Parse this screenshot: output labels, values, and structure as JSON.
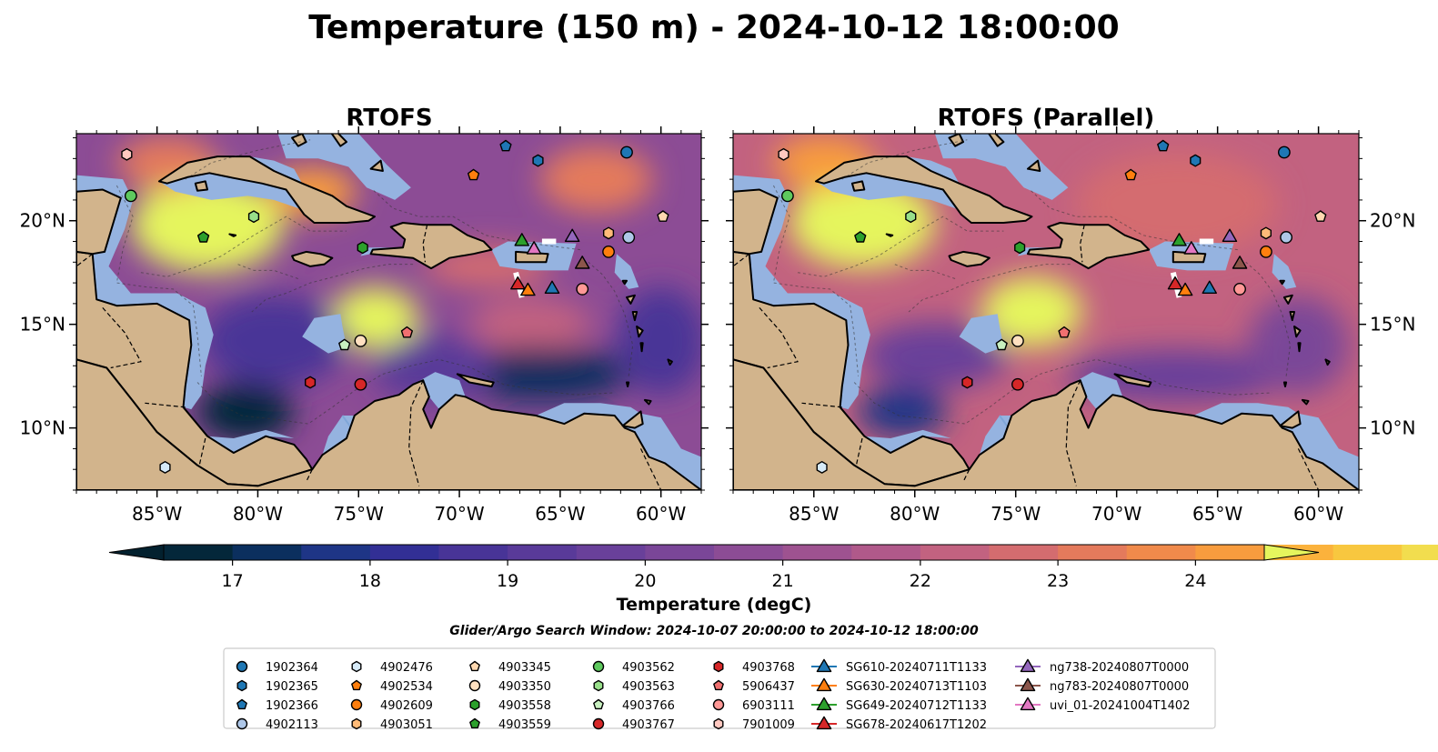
{
  "title": "Temperature (150 m) - 2024-10-12 18:00:00",
  "colorbar": {
    "label": "Temperature (degC)",
    "ticks": [
      "17",
      "18",
      "19",
      "20",
      "21",
      "22",
      "23",
      "24"
    ],
    "min": 16.5,
    "max": 24.5,
    "step": 0.5,
    "colors": [
      "#04273a",
      "#0b2f5e",
      "#1e3586",
      "#322f95",
      "#483497",
      "#593a99",
      "#69409a",
      "#7a4698",
      "#8c4c95",
      "#9e5290",
      "#b0598a",
      "#c26280",
      "#d46c6f",
      "#e47a5c",
      "#f08a4b",
      "#f89c3e",
      "#fbb23c",
      "#f8c73f",
      "#f2dd4e"
    ],
    "under_color": "#03212f",
    "over_color": "#e5f55d"
  },
  "search_window": "Glider/Argo Search Window: 2024-10-07 20:00:00 to 2024-10-12 18:00:00",
  "panels": [
    {
      "title": "RTOFS",
      "y_ticks_side": "left"
    },
    {
      "title": "RTOFS (Parallel)",
      "y_ticks_side": "right"
    }
  ],
  "axes": {
    "x_ticks": [
      "85°W",
      "80°W",
      "75°W",
      "70°W",
      "65°W",
      "60°W"
    ],
    "y_ticks": [
      "20°N",
      "15°N",
      "10°N"
    ],
    "x_values": [
      -85,
      -80,
      -75,
      -70,
      -65,
      -60
    ],
    "y_values": [
      20,
      15,
      10
    ],
    "lon_range": [
      -89,
      -58
    ],
    "lat_range": [
      7,
      24.2
    ]
  },
  "map_colors": {
    "land": "#d2b48c",
    "shelf": "#95b3e0"
  },
  "legend": {
    "columns": [
      [
        {
          "label": "1902364",
          "marker": "circle",
          "color": "#1f77b4"
        },
        {
          "label": "1902365",
          "marker": "hexagon",
          "color": "#1f77b4"
        },
        {
          "label": "1902366",
          "marker": "pentagon",
          "color": "#1f77b4"
        },
        {
          "label": "4902113",
          "marker": "circle",
          "color": "#aec7e8"
        }
      ],
      [
        {
          "label": "4902476",
          "marker": "hexagon",
          "color": "#d6eaf8"
        },
        {
          "label": "4902534",
          "marker": "pentagon",
          "color": "#ff7f0e"
        },
        {
          "label": "4902609",
          "marker": "circle",
          "color": "#ff7f0e"
        },
        {
          "label": "4903051",
          "marker": "hexagon",
          "color": "#ffbb78"
        }
      ],
      [
        {
          "label": "4903345",
          "marker": "pentagon",
          "color": "#ffd8b0"
        },
        {
          "label": "4903350",
          "marker": "circle",
          "color": "#ffe0c0"
        },
        {
          "label": "4903558",
          "marker": "hexagon",
          "color": "#2ca02c"
        },
        {
          "label": "4903559",
          "marker": "pentagon",
          "color": "#2ca02c"
        }
      ],
      [
        {
          "label": "4903562",
          "marker": "circle",
          "color": "#5ec95e"
        },
        {
          "label": "4903563",
          "marker": "hexagon",
          "color": "#98df8a"
        },
        {
          "label": "4903766",
          "marker": "pentagon",
          "color": "#c8f0c0"
        },
        {
          "label": "4903767",
          "marker": "circle",
          "color": "#d62728"
        }
      ],
      [
        {
          "label": "4903768",
          "marker": "hexagon",
          "color": "#d62728"
        },
        {
          "label": "5906437",
          "marker": "pentagon",
          "color": "#f07070"
        },
        {
          "label": "6903111",
          "marker": "circle",
          "color": "#ff9896"
        },
        {
          "label": "7901009",
          "marker": "hexagon",
          "color": "#ffc8c0"
        }
      ],
      [
        {
          "label": "SG610-20240711T1133",
          "marker": "triangle",
          "color": "#1f77b4"
        },
        {
          "label": "SG630-20240713T1103",
          "marker": "triangle",
          "color": "#ff7f0e"
        },
        {
          "label": "SG649-20240712T1133",
          "marker": "triangle",
          "color": "#2ca02c"
        },
        {
          "label": "SG678-20240617T1202",
          "marker": "triangle",
          "color": "#d62728"
        }
      ],
      [
        {
          "label": "ng738-20240807T0000",
          "marker": "triangle",
          "color": "#9467bd"
        },
        {
          "label": "ng783-20240807T0000",
          "marker": "triangle",
          "color": "#8c564b"
        },
        {
          "label": "uvi_01-20241004T1402",
          "marker": "triangle",
          "color": "#e377c2"
        }
      ]
    ]
  },
  "chart_data": {
    "type": "heatmap",
    "value_unit": "degC",
    "temperature_range": [
      16.5,
      24.5
    ],
    "floats": [
      {
        "id": "1902364",
        "lon": -61.7,
        "lat": 23.3
      },
      {
        "id": "1902365",
        "lon": -66.1,
        "lat": 22.9
      },
      {
        "id": "1902366",
        "lon": -67.7,
        "lat": 23.6
      },
      {
        "id": "4902113",
        "lon": -61.6,
        "lat": 19.2
      },
      {
        "id": "4902476",
        "lon": -84.6,
        "lat": 8.1
      },
      {
        "id": "4902534",
        "lon": -69.3,
        "lat": 22.2
      },
      {
        "id": "4902609",
        "lon": -62.6,
        "lat": 18.5
      },
      {
        "id": "4903051",
        "lon": -62.6,
        "lat": 19.4
      },
      {
        "id": "4903345",
        "lon": -59.9,
        "lat": 20.2
      },
      {
        "id": "4903350",
        "lon": -74.9,
        "lat": 14.2
      },
      {
        "id": "4903558",
        "lon": -74.8,
        "lat": 18.7
      },
      {
        "id": "4903559",
        "lon": -82.7,
        "lat": 19.2
      },
      {
        "id": "4903562",
        "lon": -86.3,
        "lat": 21.2
      },
      {
        "id": "4903563",
        "lon": -80.2,
        "lat": 20.2
      },
      {
        "id": "4903766",
        "lon": -75.7,
        "lat": 14.0
      },
      {
        "id": "4903767",
        "lon": -74.9,
        "lat": 12.1
      },
      {
        "id": "4903768",
        "lon": -77.4,
        "lat": 12.2
      },
      {
        "id": "5906437",
        "lon": -72.6,
        "lat": 14.6
      },
      {
        "id": "6903111",
        "lon": -63.9,
        "lat": 16.7
      },
      {
        "id": "7901009",
        "lon": -86.5,
        "lat": 23.2
      }
    ],
    "gliders": [
      {
        "id": "SG610-20240711T1133",
        "lon": -65.4,
        "lat": 16.7
      },
      {
        "id": "SG630-20240713T1103",
        "lon": -66.6,
        "lat": 16.6
      },
      {
        "id": "SG649-20240712T1133",
        "lon": -66.9,
        "lat": 19.0
      },
      {
        "id": "SG678-20240617T1202",
        "lon": -67.1,
        "lat": 16.9
      },
      {
        "id": "ng738-20240807T0000",
        "lon": -64.4,
        "lat": 19.2
      },
      {
        "id": "ng783-20240807T0000",
        "lon": -63.9,
        "lat": 17.9
      },
      {
        "id": "uvi_01-20241004T1402",
        "lon": -66.3,
        "lat": 18.6
      }
    ],
    "panel_fields": [
      {
        "background": 20.6,
        "features": [
          {
            "lon": -82.5,
            "lat": 19.8,
            "rx": 3.8,
            "ry": 2.3,
            "value": 24.5
          },
          {
            "lon": -77.3,
            "lat": 21.4,
            "rx": 2.2,
            "ry": 1.2,
            "value": 24.2
          },
          {
            "lon": -84.5,
            "lat": 22.8,
            "rx": 2.5,
            "ry": 1.3,
            "value": 23.2
          },
          {
            "lon": -74.2,
            "lat": 15.3,
            "rx": 2.2,
            "ry": 1.5,
            "value": 24.5
          },
          {
            "lon": -63.2,
            "lat": 22.0,
            "rx": 2.8,
            "ry": 1.6,
            "value": 23.3
          },
          {
            "lon": -68.6,
            "lat": 17.8,
            "rx": 3.2,
            "ry": 1.0,
            "value": 22.6
          },
          {
            "lon": -66.5,
            "lat": 15.0,
            "rx": 3.0,
            "ry": 1.3,
            "value": 22.4
          },
          {
            "lon": -80.6,
            "lat": 10.8,
            "rx": 2.4,
            "ry": 1.4,
            "value": 16.5
          },
          {
            "lon": -66.0,
            "lat": 12.6,
            "rx": 4.5,
            "ry": 1.3,
            "value": 17.3
          },
          {
            "lon": -79.2,
            "lat": 14.2,
            "rx": 3.6,
            "ry": 2.2,
            "value": 18.8
          },
          {
            "lon": -71.3,
            "lat": 12.9,
            "rx": 3.0,
            "ry": 1.6,
            "value": 19.2
          },
          {
            "lon": -60.0,
            "lat": 14.2,
            "rx": 2.2,
            "ry": 2.6,
            "value": 18.6
          }
        ]
      },
      {
        "background": 22.4,
        "features": [
          {
            "lon": -82.6,
            "lat": 19.9,
            "rx": 3.6,
            "ry": 2.2,
            "value": 24.5
          },
          {
            "lon": -84.5,
            "lat": 22.8,
            "rx": 2.5,
            "ry": 1.3,
            "value": 24.0
          },
          {
            "lon": -74.2,
            "lat": 15.6,
            "rx": 2.5,
            "ry": 1.7,
            "value": 24.5
          },
          {
            "lon": -67.0,
            "lat": 20.8,
            "rx": 5.0,
            "ry": 2.5,
            "value": 22.8
          },
          {
            "lon": -80.6,
            "lat": 10.8,
            "rx": 2.2,
            "ry": 1.2,
            "value": 17.5
          },
          {
            "lon": -79.0,
            "lat": 13.5,
            "rx": 3.6,
            "ry": 1.6,
            "value": 19.8
          },
          {
            "lon": -67.0,
            "lat": 12.5,
            "rx": 5.5,
            "ry": 1.3,
            "value": 19.6
          },
          {
            "lon": -61.0,
            "lat": 14.0,
            "rx": 2.5,
            "ry": 2.4,
            "value": 20.3
          }
        ]
      }
    ]
  }
}
